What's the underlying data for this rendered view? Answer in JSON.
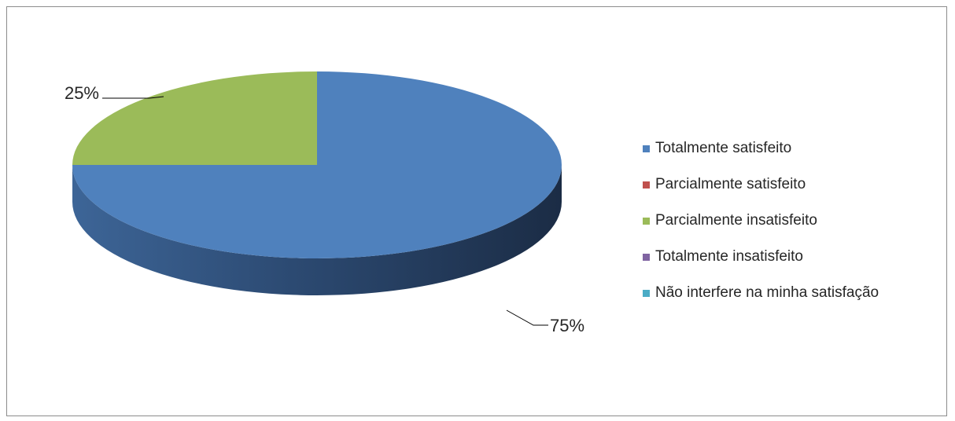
{
  "chart_data": {
    "type": "pie",
    "style": "3d",
    "categories": [
      "Totalmente satisfeito",
      "Parcialmente satisfeito",
      "Parcialmente insatisfeito",
      "Totalmente insatisfeito",
      "Não interfere na minha satisfação"
    ],
    "values": [
      75,
      0,
      25,
      0,
      0
    ],
    "data_labels": [
      "75%",
      "",
      "25%",
      "",
      ""
    ],
    "colors": [
      "#4f81bd",
      "#c0504d",
      "#9bbb59",
      "#8064a2",
      "#4bacc6"
    ],
    "legend_position": "right"
  }
}
